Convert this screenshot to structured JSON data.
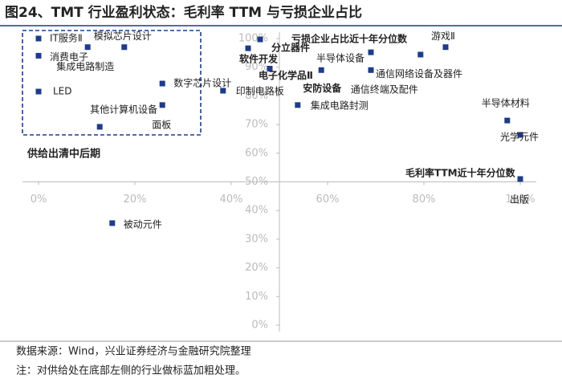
{
  "chart_data": {
    "type": "scatter",
    "title": "图24、TMT 行业盈利状态：毛利率 TTM 与亏损企业占比",
    "x_label": "毛利率TTM近十年分位数",
    "y_label": "亏损企业占比近十年分位数",
    "annotation": "供给出清中后期",
    "source": "数据来源：Wind，兴业证券经济与金融研究院整理",
    "note": "注：对供给处在底部左侧的行业做标蓝加粗处理。",
    "color": "#1f3c88",
    "highlight_color": "#1f4e9a",
    "xlim": [
      0,
      100
    ],
    "ylim": [
      0,
      100
    ],
    "xticks": [
      {
        "value": 0,
        "label": "0%"
      },
      {
        "value": 20,
        "label": "20%"
      },
      {
        "value": 40,
        "label": "40%"
      },
      {
        "value": 60,
        "label": "60%"
      },
      {
        "value": 80,
        "label": "80%"
      },
      {
        "value": 100,
        "label": "100%"
      }
    ],
    "yticks": [
      {
        "value": 0,
        "label": "0%"
      },
      {
        "value": 10,
        "label": "10%"
      },
      {
        "value": 20,
        "label": "20%"
      },
      {
        "value": 30,
        "label": "30%"
      },
      {
        "value": 40,
        "label": "40%"
      },
      {
        "value": 50,
        "label": "50%"
      },
      {
        "value": 60,
        "label": "60%"
      },
      {
        "value": 70,
        "label": "70%"
      },
      {
        "value": 80,
        "label": "80%"
      },
      {
        "value": 90,
        "label": "90%"
      },
      {
        "value": 100,
        "label": "100%"
      }
    ],
    "points": [
      {
        "label": "IT服务Ⅱ",
        "x": 0,
        "y": 100,
        "highlight": false
      },
      {
        "label": "消费电子",
        "x": 0,
        "y": 94,
        "highlight": false
      },
      {
        "label": "LED",
        "x": 0,
        "y": 81.5,
        "highlight": false
      },
      {
        "label": "集成电路制造",
        "x": 10.2,
        "y": 97,
        "highlight": false
      },
      {
        "label": "模拟芯片设计",
        "x": 17.8,
        "y": 97,
        "highlight": false
      },
      {
        "label": "数字芯片设计",
        "x": 25.7,
        "y": 84.3,
        "highlight": false
      },
      {
        "label": "其他计算机设备",
        "x": 25.7,
        "y": 76.8,
        "highlight": false
      },
      {
        "label": "面板",
        "x": 12.7,
        "y": 69.2,
        "highlight": false
      },
      {
        "label": "印制电路板",
        "x": 38.3,
        "y": 81.8,
        "highlight": false
      },
      {
        "label": "被动元件",
        "x": 15.3,
        "y": 35.6,
        "highlight": false
      },
      {
        "label": "软件开发",
        "x": 43.5,
        "y": 96.6,
        "highlight": true
      },
      {
        "label": "分立器件",
        "x": 46,
        "y": 99.7,
        "highlight": true
      },
      {
        "label": "电子化学品Ⅱ",
        "x": 48,
        "y": 89.5,
        "highlight": true
      },
      {
        "label": "安防设备",
        "x": 58.7,
        "y": 89,
        "highlight": true
      },
      {
        "label": "半导体设备",
        "x": 69,
        "y": 95.2,
        "highlight": false
      },
      {
        "label": "通信网络设备及器件",
        "x": 69,
        "y": 89,
        "highlight": false
      },
      {
        "label": "通信终端及配件",
        "x": 79.3,
        "y": 94.4,
        "highlight": false
      },
      {
        "label": "游戏Ⅱ",
        "x": 84.5,
        "y": 97,
        "highlight": false
      },
      {
        "label": "集成电路封测",
        "x": 53.8,
        "y": 76.8,
        "highlight": false
      },
      {
        "label": "半导体材料",
        "x": 97.3,
        "y": 71.4,
        "highlight": false
      },
      {
        "label": "光学元件",
        "x": 100,
        "y": 66.4,
        "highlight": false
      },
      {
        "label": "出版",
        "x": 100,
        "y": 51,
        "highlight": false
      }
    ]
  }
}
